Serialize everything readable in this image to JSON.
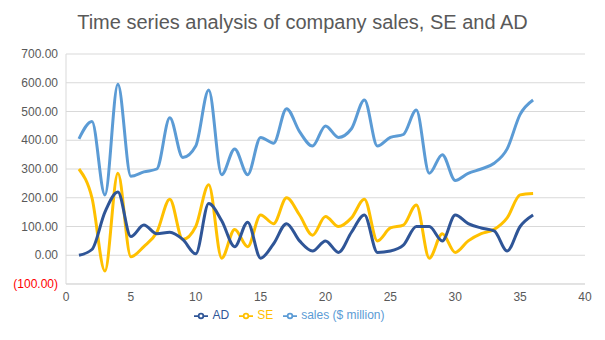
{
  "chart_data": {
    "type": "line",
    "title": "Time series analysis of company sales, SE and AD",
    "x": [
      1,
      2,
      3,
      4,
      5,
      6,
      7,
      8,
      9,
      10,
      11,
      12,
      13,
      14,
      15,
      16,
      17,
      18,
      19,
      20,
      21,
      22,
      23,
      24,
      25,
      26,
      27,
      28,
      29,
      30,
      31,
      32,
      33,
      34,
      35,
      36
    ],
    "series": [
      {
        "name": "sales ($ million)",
        "color": "#5b9bd5",
        "values": [
          405,
          465,
          210,
          595,
          275,
          290,
          300,
          478,
          340,
          380,
          575,
          280,
          370,
          280,
          410,
          390,
          510,
          430,
          380,
          450,
          410,
          440,
          540,
          380,
          410,
          420,
          505,
          285,
          350,
          260,
          285,
          300,
          320,
          370,
          490,
          540
        ]
      },
      {
        "name": "SE",
        "color": "#ffc000",
        "values": [
          300,
          200,
          -55,
          285,
          -5,
          30,
          80,
          195,
          55,
          100,
          245,
          -10,
          90,
          30,
          140,
          110,
          200,
          140,
          70,
          135,
          100,
          130,
          195,
          50,
          95,
          105,
          175,
          -10,
          75,
          10,
          50,
          75,
          90,
          130,
          210,
          215
        ]
      },
      {
        "name": "AD",
        "color": "#2f5597",
        "values": [
          0,
          20,
          150,
          220,
          65,
          105,
          75,
          80,
          55,
          5,
          180,
          120,
          30,
          115,
          -10,
          40,
          110,
          50,
          15,
          50,
          10,
          80,
          140,
          10,
          15,
          35,
          100,
          100,
          50,
          140,
          110,
          95,
          85,
          15,
          100,
          140
        ]
      }
    ],
    "xlim": [
      0,
      40
    ],
    "xticks": [
      0,
      5,
      10,
      15,
      20,
      25,
      30,
      35,
      40
    ],
    "ylim": [
      -100,
      700
    ],
    "yticks": [
      {
        "value": -100,
        "label": "(100.00)"
      },
      {
        "value": 0,
        "label": "0.00"
      },
      {
        "value": 100,
        "label": "100.00"
      },
      {
        "value": 200,
        "label": "200.00"
      },
      {
        "value": 300,
        "label": "300.00"
      },
      {
        "value": 400,
        "label": "400.00"
      },
      {
        "value": 500,
        "label": "500.00"
      },
      {
        "value": 600,
        "label": "600.00"
      },
      {
        "value": 700,
        "label": "700.00"
      }
    ],
    "grid": true,
    "legend": "bottom",
    "marker": "none",
    "line_style": "smooth"
  }
}
